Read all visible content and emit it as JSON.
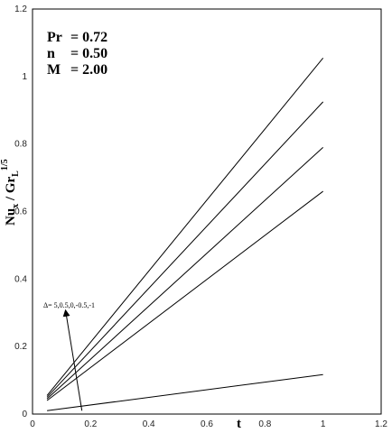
{
  "chart_data": {
    "type": "line",
    "xlabel": "t",
    "ylabel_parts": {
      "main": "Nu",
      "sub1": "x",
      "mid": " / Gr",
      "sub2": "L",
      "sup": "1/5"
    },
    "xlim": [
      0,
      1.2
    ],
    "ylim": [
      0,
      1.2
    ],
    "xticks": [
      "0",
      "0.2",
      "0.4",
      "0.6",
      "0.8",
      "1",
      "1.2"
    ],
    "yticks": [
      "0",
      "0.2",
      "0.4",
      "0.6",
      "0.8",
      "1",
      "1.2"
    ],
    "grid": false,
    "params": [
      {
        "label": "Pr",
        "value": "= 0.72"
      },
      {
        "label": "n",
        "value": "= 0.50"
      },
      {
        "label": "M",
        "value": "= 2.00"
      }
    ],
    "annotation": {
      "text": "Δ= 5,0.5,0,-0.5,-1",
      "arrow_from": [
        0.17,
        0.01
      ],
      "arrow_to": [
        0.115,
        0.3
      ]
    },
    "series": [
      {
        "x": [
          0.05,
          1.0
        ],
        "y": [
          0.055,
          1.055
        ]
      },
      {
        "x": [
          0.05,
          1.0
        ],
        "y": [
          0.05,
          0.925
        ]
      },
      {
        "x": [
          0.05,
          1.0
        ],
        "y": [
          0.045,
          0.79
        ]
      },
      {
        "x": [
          0.05,
          1.0
        ],
        "y": [
          0.04,
          0.66
        ]
      },
      {
        "x": [
          0.05,
          1.0
        ],
        "y": [
          0.01,
          0.117
        ]
      }
    ]
  }
}
